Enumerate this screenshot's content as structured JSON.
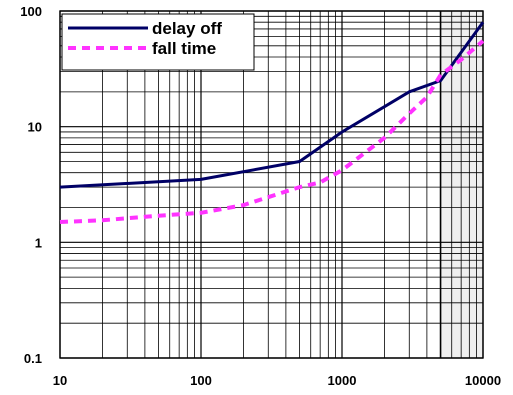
{
  "chart_data": {
    "type": "line",
    "x_scale": "log",
    "y_scale": "log",
    "xlim": [
      10,
      10000
    ],
    "ylim": [
      0.1,
      100
    ],
    "x_ticks": [
      10,
      100,
      1000,
      10000
    ],
    "x_tick_labels": [
      "10",
      "100",
      "1000",
      "10000"
    ],
    "y_ticks": [
      0.1,
      1,
      10,
      100
    ],
    "y_tick_labels": [
      "0.1",
      "1",
      "10",
      "100"
    ],
    "grid": true,
    "legend_position": "top-left",
    "shaded_x_range": [
      5000,
      10000
    ],
    "series": [
      {
        "name": "delay off",
        "color": "#000066",
        "style": "solid",
        "points": [
          [
            10,
            3.0
          ],
          [
            100,
            3.5
          ],
          [
            500,
            5.0
          ],
          [
            1000,
            9.0
          ],
          [
            3000,
            20
          ],
          [
            5000,
            25
          ],
          [
            10000,
            80
          ]
        ]
      },
      {
        "name": "fall time",
        "color": "#ff33ff",
        "style": "dashed",
        "points": [
          [
            10,
            1.5
          ],
          [
            20,
            1.55
          ],
          [
            50,
            1.7
          ],
          [
            100,
            1.8
          ],
          [
            200,
            2.1
          ],
          [
            500,
            3.0
          ],
          [
            700,
            3.3
          ],
          [
            1000,
            4.2
          ],
          [
            2000,
            8.0
          ],
          [
            3000,
            13
          ],
          [
            4000,
            18
          ],
          [
            5000,
            28
          ],
          [
            7000,
            38
          ],
          [
            10000,
            55
          ]
        ]
      }
    ]
  }
}
